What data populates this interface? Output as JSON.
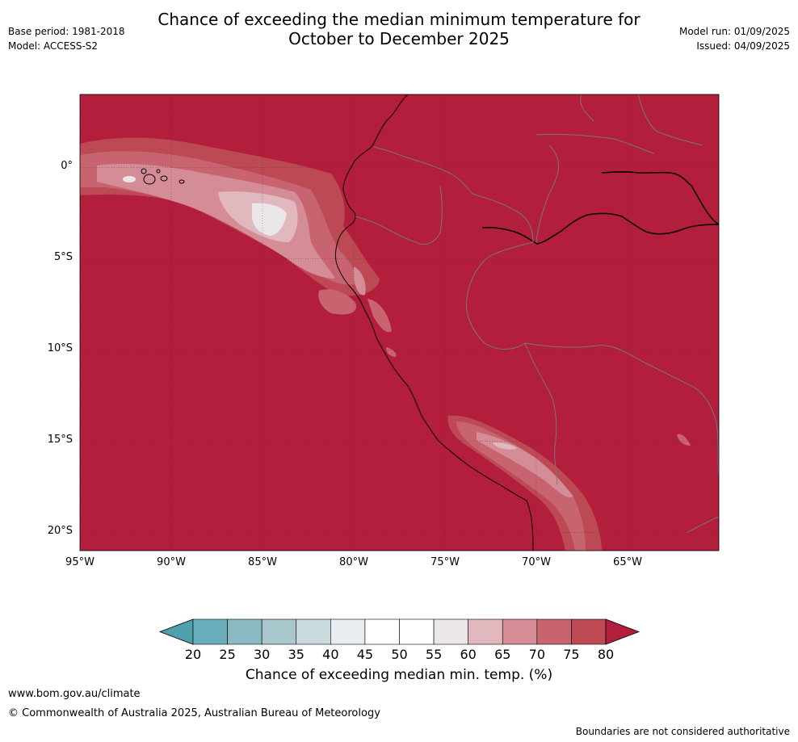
{
  "title_line1": "Chance of exceeding the median minimum temperature for",
  "title_line2": "October to December 2025",
  "meta_left": {
    "base_period": "Base period: 1981-2018",
    "model": "Model: ACCESS-S2"
  },
  "meta_right": {
    "model_run": "Model run: 01/09/2025",
    "issued": "Issued: 04/09/2025"
  },
  "map": {
    "lat_ticks": [
      "0°",
      "5°S",
      "10°S",
      "15°S",
      "20°S"
    ],
    "lon_ticks": [
      "95°W",
      "90°W",
      "85°W",
      "80°W",
      "75°W",
      "70°W",
      "65°W"
    ],
    "lat_values": [
      0,
      -5,
      -10,
      -15,
      -20
    ],
    "lon_values": [
      -95,
      -90,
      -85,
      -80,
      -75,
      -70,
      -65
    ],
    "lon_range": [
      -95,
      -60
    ],
    "lat_range": [
      -21,
      4
    ],
    "dominant_category": "80+",
    "grid": true
  },
  "colorbar": {
    "labels": [
      "20",
      "25",
      "30",
      "35",
      "40",
      "45",
      "50",
      "55",
      "60",
      "65",
      "70",
      "75",
      "80"
    ],
    "colors": {
      "below20": "#4f9fad",
      "bins": [
        "#6aaebb",
        "#8ab9c3",
        "#a9c8ce",
        "#c9dadf",
        "#e8eef0",
        "#ffffff",
        "#ffffff",
        "#ebe7e8",
        "#e0b8bd",
        "#d48d96",
        "#c8646f",
        "#bc4953"
      ],
      "above80": "#b21e3b"
    },
    "title": "Chance of exceeding median min. temp. (%)"
  },
  "footer": {
    "url": "www.bom.gov.au/climate",
    "copyright": "© Commonwealth of Australia 2025, Australian Bureau of Meteorology",
    "note": "Boundaries are not considered authoritative"
  }
}
